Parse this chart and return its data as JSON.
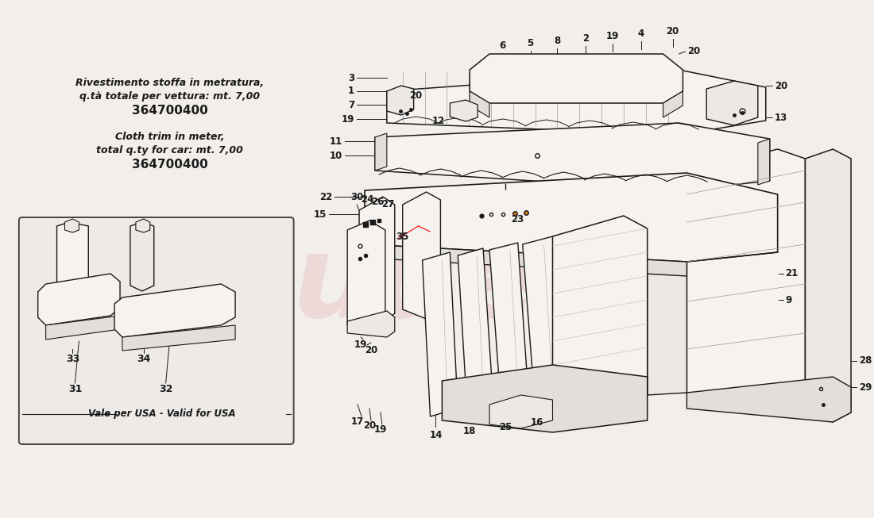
{
  "bg_color": "#f2eeea",
  "line_color": "#1a1a1a",
  "thin_line": 0.7,
  "med_line": 1.0,
  "thick_line": 1.3,
  "watermark_color": "#e8c0c0",
  "watermark_alpha": 0.45,
  "box_color": "#e8e4e0",
  "text_italian_line1": "Rivestimento stoffa in metratura,",
  "text_italian_line2": "q.tà totale per vettura: mt. 7,00",
  "text_italian_line3": "364700400",
  "text_english_line1": "Cloth trim in meter,",
  "text_english_line2": "total q.ty for car: mt. 7,00",
  "text_english_line3": "364700400",
  "usa_label": "Vale per USA - Valid for USA",
  "part_fill": "#f5f2ef",
  "part_fill2": "#ece8e4",
  "part_fill3": "#e2deda"
}
